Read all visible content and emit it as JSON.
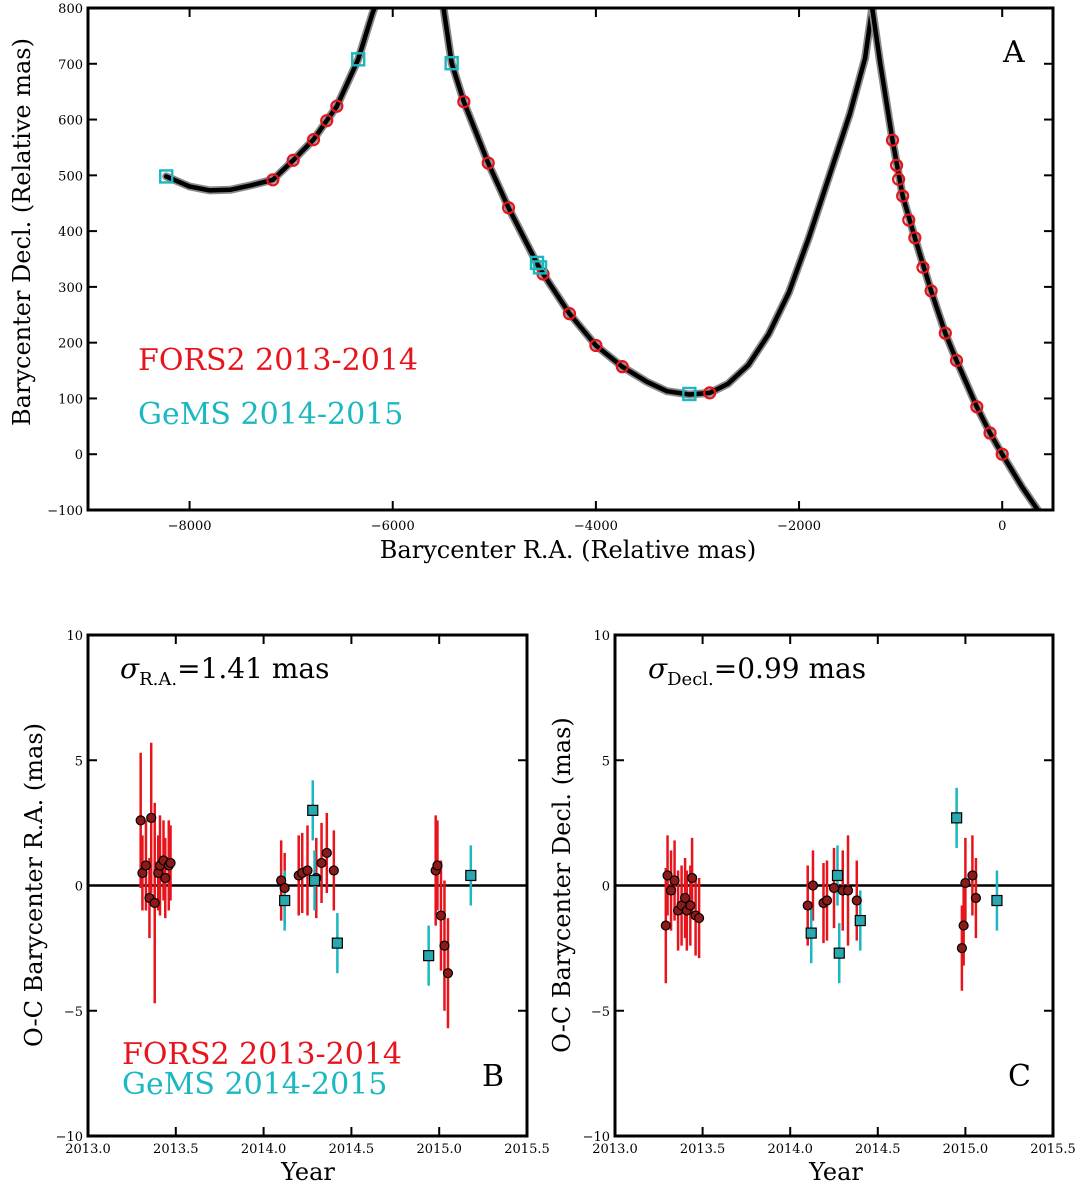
{
  "colors": {
    "fors2": "#e8141c",
    "gems": "#1ab8c0",
    "gems_fill": "#2aa8b0",
    "dot_fill": "#8b1a1a",
    "model": "#000000",
    "model_halo": "#8a8a8a"
  },
  "chart_data": [
    {
      "id": "A",
      "type": "scatter",
      "panel_letter": "A",
      "xlabel": "Barycenter R.A. (Relative mas)",
      "ylabel": "Barycenter Decl. (Relative mas)",
      "xlim": [
        -9000,
        500
      ],
      "ylim": [
        -100,
        800
      ],
      "xticks": [
        -8000,
        -6000,
        -4000,
        -2000,
        0
      ],
      "xtick_labels": [
        "−8000",
        "−6000",
        "−4000",
        "−2000",
        "0"
      ],
      "yticks": [
        -100,
        0,
        100,
        200,
        300,
        400,
        500,
        600,
        700,
        800
      ],
      "ytick_labels": [
        "−100",
        "0",
        "100",
        "200",
        "300",
        "400",
        "500",
        "600",
        "700",
        "800"
      ],
      "legend": [
        {
          "label": "FORS2 2013-2014",
          "color": "#e8141c"
        },
        {
          "label": "GeMS 2014-2015",
          "color": "#1ab8c0"
        }
      ],
      "series": [
        {
          "name": "FORS2 2013-2014",
          "marker": "circle",
          "points": [
            [
              -7180,
              492
            ],
            [
              -6980,
              527
            ],
            [
              -6780,
              564
            ],
            [
              -6650,
              598
            ],
            [
              -6550,
              624
            ],
            [
              -5300,
              632
            ],
            [
              -5060,
              522
            ],
            [
              -4860,
              442
            ],
            [
              -4520,
              323
            ],
            [
              -4260,
              252
            ],
            [
              -4000,
              195
            ],
            [
              -3740,
              157
            ],
            [
              -2880,
              110
            ],
            [
              -1080,
              563
            ],
            [
              -1040,
              518
            ],
            [
              -1020,
              493
            ],
            [
              -980,
              463
            ],
            [
              -920,
              420
            ],
            [
              -860,
              388
            ],
            [
              -780,
              335
            ],
            [
              -700,
              293
            ],
            [
              -560,
              217
            ],
            [
              -450,
              168
            ],
            [
              -250,
              85
            ],
            [
              -120,
              38
            ],
            [
              0,
              0
            ]
          ]
        },
        {
          "name": "GeMS 2014-2015",
          "marker": "square",
          "points": [
            [
              -8230,
              498
            ],
            [
              -6340,
              708
            ],
            [
              -5420,
              701
            ],
            [
              -4580,
              343
            ],
            [
              -4550,
              335
            ],
            [
              -3080,
              108
            ]
          ]
        }
      ],
      "model_curve": {
        "description_free": true,
        "segments": [
          {
            "points": [
              [
                -8230,
                498
              ],
              [
                -8000,
                480
              ],
              [
                -7800,
                473
              ],
              [
                -7600,
                474
              ],
              [
                -7400,
                482
              ],
              [
                -7180,
                492
              ],
              [
                -6980,
                527
              ],
              [
                -6780,
                564
              ],
              [
                -6550,
                624
              ],
              [
                -6340,
                708
              ],
              [
                -6200,
                790
              ],
              [
                -6180,
                800
              ]
            ]
          },
          {
            "points": [
              [
                -5500,
                800
              ],
              [
                -5420,
                701
              ],
              [
                -5300,
                632
              ],
              [
                -5060,
                522
              ],
              [
                -4860,
                442
              ],
              [
                -4560,
                335
              ],
              [
                -4260,
                252
              ],
              [
                -4000,
                195
              ],
              [
                -3740,
                157
              ],
              [
                -3500,
                130
              ],
              [
                -3300,
                113
              ],
              [
                -3080,
                107
              ],
              [
                -2880,
                110
              ],
              [
                -2700,
                126
              ],
              [
                -2500,
                160
              ],
              [
                -2300,
                215
              ],
              [
                -2100,
                290
              ],
              [
                -1900,
                390
              ],
              [
                -1700,
                500
              ],
              [
                -1500,
                610
              ],
              [
                -1350,
                710
              ],
              [
                -1280,
                800
              ]
            ]
          },
          {
            "points": [
              [
                -1280,
                800
              ],
              [
                -1200,
                700
              ],
              [
                -1080,
                563
              ],
              [
                -980,
                463
              ],
              [
                -860,
                388
              ],
              [
                -700,
                293
              ],
              [
                -560,
                217
              ],
              [
                -450,
                168
              ],
              [
                -250,
                85
              ],
              [
                -120,
                38
              ],
              [
                0,
                0
              ],
              [
                200,
                -60
              ],
              [
                350,
                -100
              ]
            ]
          }
        ]
      }
    },
    {
      "id": "B",
      "type": "scatter",
      "panel_letter": "B",
      "xlabel": "Year",
      "ylabel": "O-C Barycenter R.A. (mas)",
      "xlim": [
        2013.0,
        2015.5
      ],
      "ylim": [
        -10,
        10
      ],
      "xticks": [
        2013.0,
        2013.5,
        2014.0,
        2014.5,
        2015.0,
        2015.5
      ],
      "xtick_labels": [
        "2013.0",
        "2013.5",
        "2014.0",
        "2014.5",
        "2015.0",
        "2015.5"
      ],
      "yticks": [
        -10,
        -5,
        0,
        5,
        10
      ],
      "ytick_labels": [
        "−10",
        "−5",
        "0",
        "5",
        "10"
      ],
      "sigma_symbol": "σ",
      "sigma_sub": "R.A.",
      "sigma_value": "=1.41 mas",
      "legend": [
        {
          "label": "FORS2 2013-2014",
          "color": "#e8141c"
        },
        {
          "label": "GeMS 2014-2015",
          "color": "#1ab8c0"
        }
      ],
      "series": [
        {
          "name": "FORS2 2013-2014",
          "marker": "circle",
          "points": [
            [
              2013.3,
              2.6,
              2.7
            ],
            [
              2013.31,
              0.5,
              1.5
            ],
            [
              2013.33,
              0.8,
              1.8
            ],
            [
              2013.35,
              -0.5,
              1.6
            ],
            [
              2013.36,
              2.7,
              3.0
            ],
            [
              2013.38,
              -0.7,
              4.0
            ],
            [
              2013.4,
              0.5,
              1.5
            ],
            [
              2013.41,
              0.8,
              2.0
            ],
            [
              2013.43,
              1.0,
              1.6
            ],
            [
              2013.44,
              0.3,
              1.6
            ],
            [
              2013.46,
              0.8,
              1.8
            ],
            [
              2013.47,
              0.9,
              1.5
            ],
            [
              2014.1,
              0.2,
              1.6
            ],
            [
              2014.12,
              -0.1,
              1.4
            ],
            [
              2014.2,
              0.4,
              1.6
            ],
            [
              2014.22,
              0.5,
              1.6
            ],
            [
              2014.25,
              0.6,
              1.8
            ],
            [
              2014.3,
              0.3,
              1.6
            ],
            [
              2014.33,
              0.9,
              1.6
            ],
            [
              2014.36,
              1.3,
              1.6
            ],
            [
              2014.4,
              0.6,
              1.6
            ],
            [
              2014.98,
              0.6,
              2.2
            ],
            [
              2014.99,
              0.8,
              1.8
            ],
            [
              2015.01,
              -1.2,
              2.2
            ],
            [
              2015.03,
              -2.4,
              2.6
            ],
            [
              2015.05,
              -3.5,
              2.2
            ]
          ]
        },
        {
          "name": "GeMS 2014-2015",
          "marker": "square",
          "points": [
            [
              2014.12,
              -0.6,
              1.2
            ],
            [
              2014.28,
              3.0,
              1.2
            ],
            [
              2014.29,
              0.2,
              1.2
            ],
            [
              2014.42,
              -2.3,
              1.2
            ],
            [
              2014.94,
              -2.8,
              1.2
            ],
            [
              2015.18,
              0.4,
              1.2
            ]
          ]
        }
      ]
    },
    {
      "id": "C",
      "type": "scatter",
      "panel_letter": "C",
      "xlabel": "Year",
      "ylabel": "O-C Barycenter Decl. (mas)",
      "xlim": [
        2013.0,
        2015.5
      ],
      "ylim": [
        -10,
        10
      ],
      "xticks": [
        2013.0,
        2013.5,
        2014.0,
        2014.5,
        2015.0,
        2015.5
      ],
      "xtick_labels": [
        "2013.0",
        "2013.5",
        "2014.0",
        "2014.5",
        "2015.0",
        "2015.5"
      ],
      "yticks": [
        -10,
        -5,
        0,
        5,
        10
      ],
      "ytick_labels": [
        "−10",
        "−5",
        "0",
        "5",
        "10"
      ],
      "sigma_symbol": "σ",
      "sigma_sub": "Decl.",
      "sigma_value": "=0.99 mas",
      "series": [
        {
          "name": "FORS2 2013-2014",
          "marker": "circle",
          "points": [
            [
              2013.29,
              -1.6,
              2.3
            ],
            [
              2013.3,
              0.4,
              1.6
            ],
            [
              2013.32,
              -0.2,
              1.6
            ],
            [
              2013.34,
              0.2,
              1.6
            ],
            [
              2013.36,
              -1.0,
              1.6
            ],
            [
              2013.38,
              -0.8,
              1.6
            ],
            [
              2013.4,
              -0.5,
              1.6
            ],
            [
              2013.41,
              -1.0,
              1.6
            ],
            [
              2013.43,
              -0.8,
              1.6
            ],
            [
              2013.44,
              0.3,
              1.6
            ],
            [
              2013.46,
              -1.2,
              1.6
            ],
            [
              2013.48,
              -1.3,
              1.6
            ],
            [
              2014.1,
              -0.8,
              1.6
            ],
            [
              2014.13,
              0.0,
              1.4
            ],
            [
              2014.19,
              -0.7,
              1.6
            ],
            [
              2014.21,
              -0.6,
              1.6
            ],
            [
              2014.25,
              -0.1,
              1.6
            ],
            [
              2014.3,
              -0.2,
              1.6
            ],
            [
              2014.33,
              -0.2,
              2.2
            ],
            [
              2014.38,
              -0.6,
              1.6
            ],
            [
              2014.98,
              -2.5,
              1.7
            ],
            [
              2014.99,
              -1.6,
              1.6
            ],
            [
              2015.0,
              0.1,
              1.8
            ],
            [
              2015.04,
              0.4,
              1.6
            ],
            [
              2015.06,
              -0.5,
              1.6
            ]
          ]
        },
        {
          "name": "GeMS 2014-2015",
          "marker": "square",
          "points": [
            [
              2014.12,
              -1.9,
              1.2
            ],
            [
              2014.27,
              0.4,
              1.2
            ],
            [
              2014.28,
              -2.7,
              1.2
            ],
            [
              2014.4,
              -1.4,
              1.2
            ],
            [
              2014.95,
              2.7,
              1.2
            ],
            [
              2015.18,
              -0.6,
              1.2
            ]
          ]
        }
      ]
    }
  ]
}
